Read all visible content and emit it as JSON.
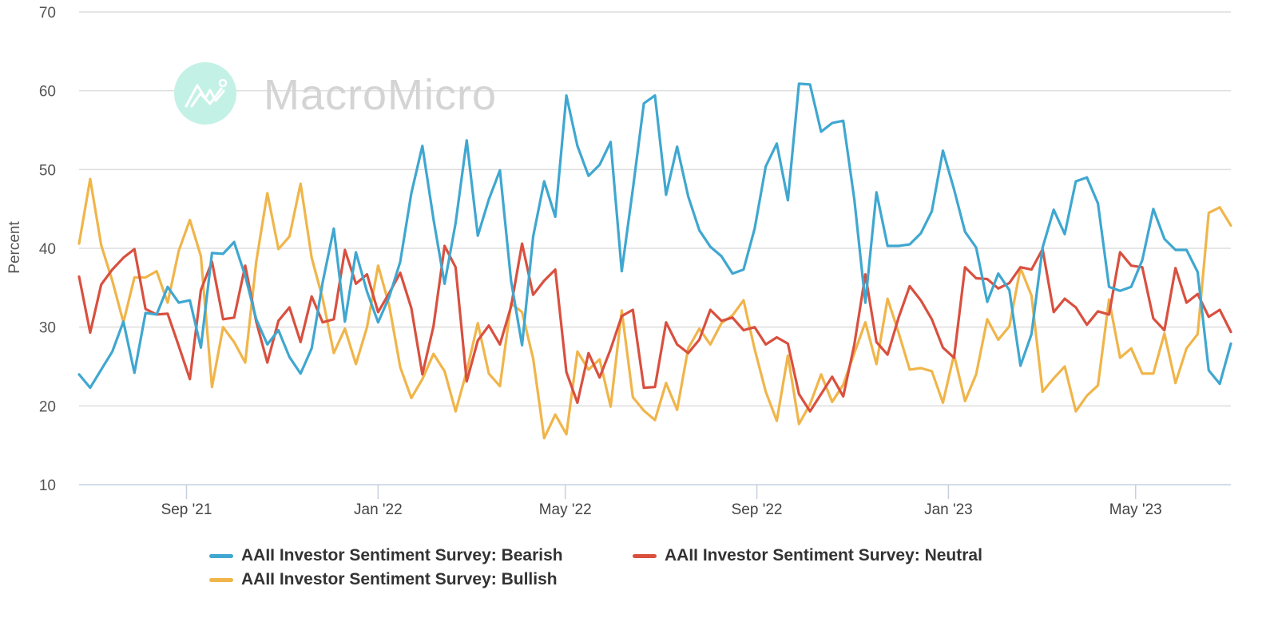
{
  "chart_data": {
    "type": "line",
    "title": "",
    "xlabel": "",
    "ylabel": "Percent",
    "ylim": [
      10,
      70
    ],
    "yticks": [
      10,
      20,
      30,
      40,
      50,
      60,
      70
    ],
    "grid": true,
    "watermark": "MacroMicro",
    "x_frequency": "weekly",
    "x_tick_labels": [
      "Sep '21",
      "Jan '22",
      "May '22",
      "Sep '22",
      "Jan '23",
      "May '23"
    ],
    "x_tick_positions_index": [
      9.7,
      27.0,
      43.9,
      61.2,
      78.5,
      95.4
    ],
    "legend_position": "bottom",
    "series": [
      {
        "name": "AAII Investor Sentiment Survey: Bearish",
        "color": "#3fa7d0",
        "values": [
          24.0,
          22.3,
          24.6,
          26.9,
          30.7,
          24.2,
          31.8,
          31.6,
          35.1,
          33.1,
          33.4,
          27.4,
          39.4,
          39.3,
          40.8,
          36.5,
          31.0,
          27.8,
          29.6,
          26.2,
          24.1,
          27.3,
          35.7,
          42.5,
          30.7,
          39.5,
          34.5,
          30.6,
          33.8,
          38.3,
          47.0,
          53.0,
          43.7,
          35.5,
          43.2,
          53.7,
          41.6,
          46.2,
          49.9,
          35.9,
          27.7,
          41.5,
          48.5,
          44.0,
          59.4,
          53.0,
          49.2,
          50.6,
          53.5,
          37.1,
          47.5,
          58.4,
          59.4,
          46.8,
          52.9,
          46.6,
          42.3,
          40.2,
          39.0,
          36.8,
          37.3,
          42.5,
          50.4,
          53.3,
          46.1,
          60.9,
          60.8,
          54.8,
          55.9,
          56.2,
          46.2,
          33.1,
          47.1,
          40.3,
          40.3,
          40.5,
          41.9,
          44.7,
          52.4,
          47.5,
          42.1,
          40.1,
          33.2,
          36.8,
          34.7,
          25.1,
          29.1,
          40.1,
          44.9,
          41.8,
          48.5,
          49.0,
          45.7,
          35.1,
          34.6,
          35.1,
          38.5,
          45.0,
          41.2,
          39.8,
          39.8,
          37.0,
          24.5,
          22.8,
          27.9
        ]
      },
      {
        "name": "AAII Investor Sentiment Survey: Neutral",
        "color": "#d9503f",
        "values": [
          36.4,
          29.3,
          35.4,
          37.3,
          38.8,
          39.9,
          32.3,
          31.6,
          31.7,
          27.6,
          23.4,
          34.7,
          38.3,
          31.0,
          31.2,
          37.8,
          30.7,
          25.5,
          30.8,
          32.5,
          28.1,
          33.9,
          30.6,
          31.0,
          39.8,
          35.5,
          36.7,
          31.9,
          34.3,
          36.9,
          32.4,
          24.0,
          30.1,
          40.3,
          37.6,
          23.1,
          28.3,
          30.2,
          27.8,
          32.6,
          40.6,
          34.1,
          35.9,
          37.3,
          24.3,
          20.4,
          26.7,
          23.6,
          27.2,
          31.4,
          32.2,
          22.3,
          22.4,
          30.6,
          27.8,
          26.7,
          28.4,
          32.2,
          30.8,
          31.2,
          29.6,
          30.0,
          27.8,
          28.7,
          27.9,
          21.5,
          19.3,
          21.5,
          23.7,
          21.2,
          27.8,
          36.7,
          28.1,
          26.5,
          31.2,
          35.2,
          33.4,
          31.0,
          27.4,
          26.1,
          37.6,
          36.2,
          36.1,
          34.9,
          35.6,
          37.6,
          37.3,
          39.9,
          31.9,
          33.6,
          32.5,
          30.3,
          32.0,
          31.6,
          39.5,
          37.8,
          37.6,
          31.1,
          29.6,
          37.5,
          33.1,
          34.2,
          31.3,
          32.2,
          29.4
        ]
      },
      {
        "name": "AAII Investor Sentiment Survey: Bullish",
        "color": "#f0b54a",
        "values": [
          40.6,
          48.8,
          40.4,
          35.9,
          30.6,
          36.3,
          36.3,
          37.1,
          33.1,
          39.7,
          43.6,
          39.0,
          22.4,
          30.0,
          28.1,
          25.5,
          38.3,
          47.0,
          39.9,
          41.5,
          48.2,
          38.8,
          33.6,
          26.7,
          29.8,
          25.3,
          30.0,
          37.8,
          32.8,
          24.9,
          21.0,
          23.4,
          26.6,
          24.4,
          19.3,
          24.4,
          30.5,
          24.1,
          22.5,
          33.0,
          31.9,
          26.0,
          15.9,
          18.9,
          16.4,
          26.9,
          24.6,
          25.9,
          19.9,
          32.1,
          21.1,
          19.4,
          18.2,
          22.9,
          19.5,
          27.3,
          29.8,
          27.8,
          30.5,
          31.5,
          33.4,
          27.2,
          21.8,
          18.1,
          26.4,
          17.7,
          20.2,
          24.0,
          20.5,
          22.7,
          26.7,
          30.6,
          25.3,
          33.6,
          29.3,
          24.6,
          24.8,
          24.4,
          20.4,
          26.5,
          20.6,
          24.0,
          31.0,
          28.4,
          30.1,
          37.5,
          34.0,
          21.8,
          23.5,
          25.0,
          19.3,
          21.3,
          22.6,
          33.5,
          26.1,
          27.3,
          24.1,
          24.1,
          29.2,
          22.9,
          27.3,
          29.1,
          44.5,
          45.2,
          42.9
        ]
      }
    ]
  }
}
